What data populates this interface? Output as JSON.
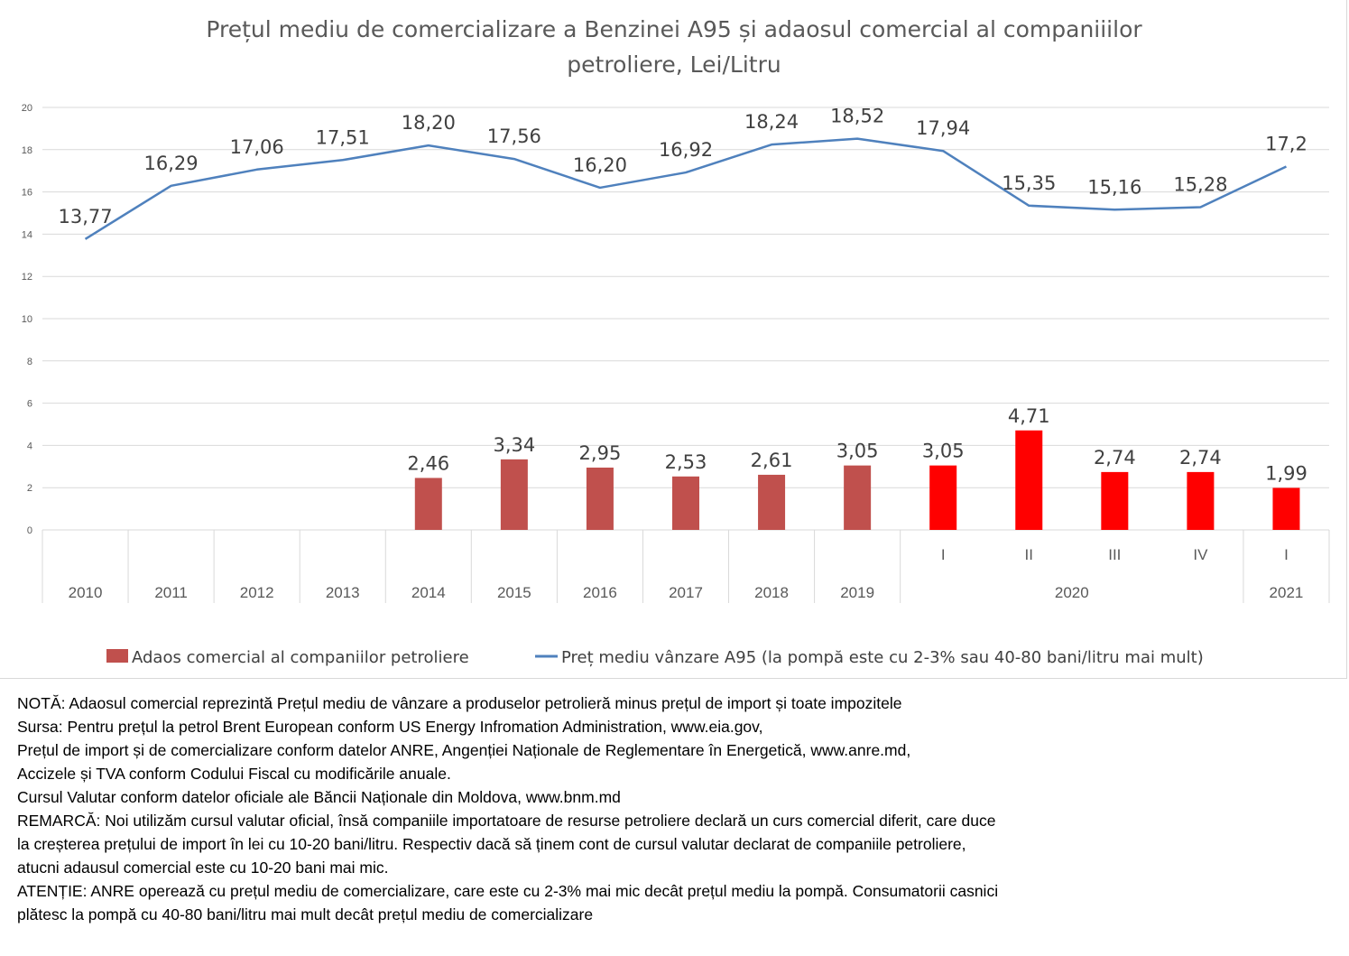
{
  "chart_data": {
    "type": "bar+line",
    "title": "Prețul mediu de comercializare a Benzinei A95 și adaosul comercial al companiiilor petroliere, Lei/Litru",
    "title_lines": [
      "Prețul mediu de comercializare a Benzinei A95 și adaosul comercial al companiiilor",
      "petroliere, Lei/Litru"
    ],
    "xlabel": "",
    "ylabel": "",
    "ylim": [
      0,
      20
    ],
    "yticks": [
      0,
      2,
      4,
      6,
      8,
      10,
      12,
      14,
      16,
      18,
      20
    ],
    "grid": true,
    "legend_position": "bottom",
    "categories": [
      {
        "sub": "",
        "group": "2010"
      },
      {
        "sub": "",
        "group": "2011"
      },
      {
        "sub": "",
        "group": "2012"
      },
      {
        "sub": "",
        "group": "2013"
      },
      {
        "sub": "",
        "group": "2014"
      },
      {
        "sub": "",
        "group": "2015"
      },
      {
        "sub": "",
        "group": "2016"
      },
      {
        "sub": "",
        "group": "2017"
      },
      {
        "sub": "",
        "group": "2018"
      },
      {
        "sub": "",
        "group": "2019"
      },
      {
        "sub": "I",
        "group": "2020"
      },
      {
        "sub": "II",
        "group": "2020"
      },
      {
        "sub": "III",
        "group": "2020"
      },
      {
        "sub": "IV",
        "group": "2020"
      },
      {
        "sub": "I",
        "group": "2021"
      }
    ],
    "groups": [
      {
        "label": "2010",
        "span": 1
      },
      {
        "label": "2011",
        "span": 1
      },
      {
        "label": "2012",
        "span": 1
      },
      {
        "label": "2013",
        "span": 1
      },
      {
        "label": "2014",
        "span": 1
      },
      {
        "label": "2015",
        "span": 1
      },
      {
        "label": "2016",
        "span": 1
      },
      {
        "label": "2017",
        "span": 1
      },
      {
        "label": "2018",
        "span": 1
      },
      {
        "label": "2019",
        "span": 1
      },
      {
        "label": "2020",
        "span": 4
      },
      {
        "label": "2021",
        "span": 1
      }
    ],
    "series": [
      {
        "name": "Adaos comercial al companiilor petroliere",
        "kind": "bar",
        "color": "#c0504d",
        "highlight_color": "#ff0000",
        "values": [
          null,
          null,
          null,
          null,
          2.46,
          3.34,
          2.95,
          2.53,
          2.61,
          3.05,
          3.05,
          4.71,
          2.74,
          2.74,
          1.99
        ],
        "labels": [
          "",
          "",
          "",
          "",
          "2,46",
          "3,34",
          "2,95",
          "2,53",
          "2,61",
          "3,05",
          "3,05",
          "4,71",
          "2,74",
          "2,74",
          "1,99"
        ],
        "highlighted": [
          false,
          false,
          false,
          false,
          false,
          false,
          false,
          false,
          false,
          false,
          true,
          true,
          true,
          true,
          true
        ]
      },
      {
        "name": "Preț mediu vânzare A95 (la pompă este cu 2-3% sau 40-80 bani/litru mai mult)",
        "kind": "line",
        "color": "#4f81bd",
        "values": [
          13.77,
          16.29,
          17.06,
          17.51,
          18.2,
          17.56,
          16.2,
          16.92,
          18.24,
          18.52,
          17.94,
          15.35,
          15.16,
          15.28,
          17.2
        ],
        "labels": [
          "13,77",
          "16,29",
          "17,06",
          "17,51",
          "18,20",
          "17,56",
          "16,20",
          "16,92",
          "18,24",
          "18,52",
          "17,94",
          "15,35",
          "15,16",
          "15,28",
          "17,2"
        ]
      }
    ]
  },
  "notes": [
    "NOTĂ: Adaosul comercial reprezintă Prețul mediu de vânzare a produselor petrolieră minus prețul de import și toate impozitele",
    "Sursa: Pentru prețul la petrol Brent European conform US Energy Infromation Administration, www.eia.gov,",
    "Prețul de import și de comercializare conform datelor ANRE, Angenției Naționale de Reglementare în Energetică, www.anre.md,",
    "Accizele și TVA conform Codului Fiscal cu modificările anuale.",
    "Cursul Valutar conform datelor oficiale ale Băncii Naționale din Moldova, www.bnm.md",
    "REMARCĂ: Noi utilizăm cursul valutar oficial, însă companiile importatoare de resurse petroliere declară un curs comercial diferit, care duce",
    "la creșterea prețului de import în lei cu 10-20 bani/litru. Respectiv dacă să ținem cont de cursul valutar declarat de companiile petroliere,",
    "atucni adausul comercial este cu 10-20 bani mai mic.",
    "ATENȚIE: ANRE operează cu prețul mediu de comercializare, care este cu 2-3% mai mic decât prețul mediu la pompă. Consumatorii casnici",
    "plătesc la pompă cu 40-80 bani/litru mai mult decât prețul mediu de comercializare"
  ]
}
